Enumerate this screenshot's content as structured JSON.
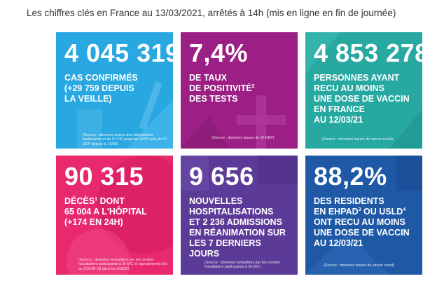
{
  "heading": "Les chiffres clés en France au 13/03/2021, arrêtés à 14h (mis en ligne en fin de journée)",
  "tiles": [
    {
      "id": "cas-confirmes",
      "color": "#29a7e1",
      "figure": "4 045 319",
      "lines": [
        "CAS CONFIRMÉS",
        "(+29 759 DEPUIS",
        "LA VEILLE)"
      ],
      "source": "(Source : données issues des laboratoires partenaires et de SI-VIC jusqu'au 12/05 puis de SI-DEP depuis le 13/05)"
    },
    {
      "id": "taux-positivite",
      "color": "#9b1f84",
      "figure": "7,4%",
      "line1": "DE TAUX",
      "line2": "DE POSITIVITÉ",
      "line2_sup": "2",
      "line3": "DES TESTS",
      "source": "(Source : données issues de SI-DEP)"
    },
    {
      "id": "vaccin-une-dose",
      "color": "#27a9a2",
      "figure": "4 853 278",
      "lines": [
        "PERSONNES AYANT",
        "RECU AU MOINS",
        "UNE DOSE DE VACCIN",
        "EN FRANCE",
        "AU 12/03/21"
      ],
      "source": "(Source : données issues de vaccin covid)"
    },
    {
      "id": "deces",
      "color": "#e8296e",
      "figure": "90 315",
      "line1": "DÉCÈS",
      "line1_sup": "1",
      "line1_rest": " DONT",
      "line2": "65 004 A L'HÔPITAL",
      "line3": "(+174 EN 24H)",
      "source": "(Source : données remontées par les centres hospitaliers participants à SI-VIC et signalements liés au COVID-19 dans les ESMS)"
    },
    {
      "id": "hospitalisations",
      "color": "#5c3a97",
      "figure": "9 656",
      "lines": [
        "NOUVELLES",
        "HOSPITALISATIONS",
        "ET 2 236 ADMISSIONS",
        "EN RÉANIMATION SUR",
        "LES 7 DERNIERS JOURS"
      ],
      "source": "(Source : données remontées par les centres hospitaliers participants à SI-VIC)"
    },
    {
      "id": "residents-ehpad",
      "color": "#1f59a6",
      "figure": "88,2%",
      "line1": "DES RESIDENTS",
      "line2a": "EN EHPAD",
      "line2a_sup": "3",
      "line2b": " OU USLD",
      "line2b_sup": "4",
      "line3": "ONT RECU AU MOINS",
      "line4": "UNE DOSE DE VACCIN",
      "line5": "AU 12/03/21",
      "source": "(Source : données issues de vaccin covid)"
    }
  ]
}
